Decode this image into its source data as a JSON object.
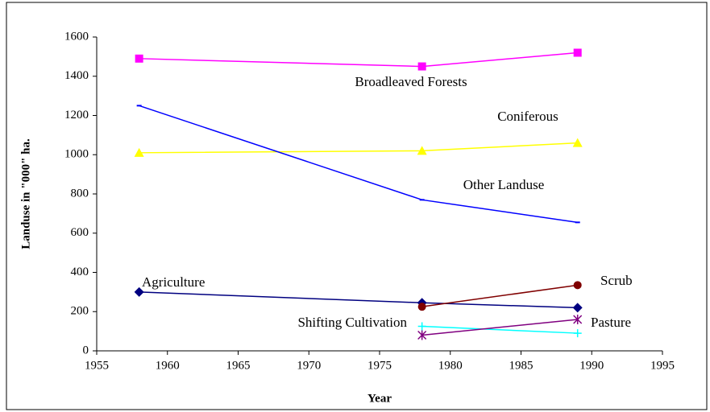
{
  "chart_data": {
    "type": "line",
    "xlabel": "Year",
    "ylabel": "Landuse in \"000\" ha.",
    "x": [
      1958,
      1978,
      1989
    ],
    "xlim": [
      1955,
      1995
    ],
    "xticks": [
      1955,
      1960,
      1965,
      1970,
      1975,
      1980,
      1985,
      1990,
      1995
    ],
    "ylim": [
      0,
      1600
    ],
    "yticks": [
      0,
      200,
      400,
      600,
      800,
      1000,
      1200,
      1400,
      1600
    ],
    "grid": false,
    "series": [
      {
        "name": "Broadleaved Forests",
        "color": "#ff00ff",
        "marker": "square",
        "values": [
          1490,
          1450,
          1520
        ]
      },
      {
        "name": "Coniferous",
        "color": "#ffff00",
        "marker": "triangle",
        "values": [
          1010,
          1020,
          1060
        ]
      },
      {
        "name": "Other Landuse",
        "color": "#0000ff",
        "marker": "dash",
        "values": [
          1250,
          770,
          655
        ]
      },
      {
        "name": "Agriculture",
        "color": "#000080",
        "marker": "diamond",
        "values": [
          300,
          245,
          220
        ]
      },
      {
        "name": "Scrub",
        "color": "#800000",
        "marker": "circle",
        "values": [
          null,
          225,
          335
        ]
      },
      {
        "name": "Shifting Cultivation",
        "color": "#00ffff",
        "marker": "cross",
        "values": [
          null,
          125,
          90
        ]
      },
      {
        "name": "Pasture",
        "color": "#800080",
        "marker": "star",
        "values": [
          null,
          80,
          160
        ]
      }
    ]
  }
}
